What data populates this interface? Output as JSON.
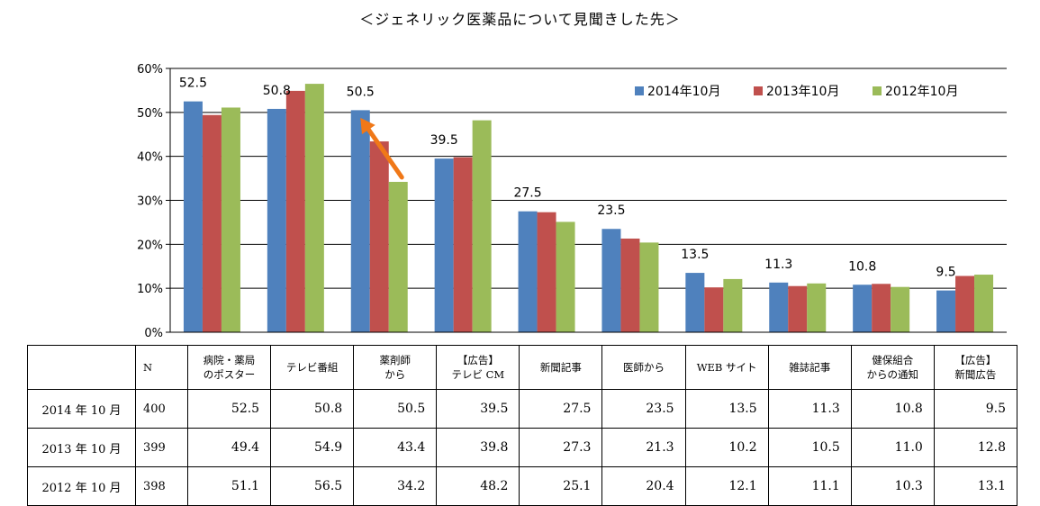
{
  "title": "＜ジェネリック医薬品について見聞きした先＞",
  "chart_data": {
    "type": "bar",
    "categories": [
      "病院・薬局のポスター",
      "テレビ番組",
      "薬剤師から",
      "【広告】テレビ CM",
      "新聞記事",
      "医師から",
      "WEB サイト",
      "雑誌記事",
      "健保組合からの通知",
      "【広告】新聞広告"
    ],
    "series": [
      {
        "name": "2014年10月",
        "color": "#4f81bd",
        "values": [
          52.5,
          50.8,
          50.5,
          39.5,
          27.5,
          23.5,
          13.5,
          11.3,
          10.8,
          9.5
        ]
      },
      {
        "name": "2013年10月",
        "color": "#c0504d",
        "values": [
          49.4,
          54.9,
          43.4,
          39.8,
          27.3,
          21.3,
          10.2,
          10.5,
          11.0,
          12.8
        ]
      },
      {
        "name": "2012年10月",
        "color": "#9bbb59",
        "values": [
          51.1,
          56.5,
          34.2,
          48.2,
          25.1,
          20.4,
          12.1,
          11.1,
          10.3,
          13.1
        ]
      }
    ],
    "data_labels": [
      "52.5",
      "50.8",
      "50.5",
      "39.5",
      "27.5",
      "23.5",
      "13.5",
      "11.3",
      "10.8",
      "9.5"
    ],
    "yticks": [
      "0%",
      "10%",
      "20%",
      "30%",
      "40%",
      "50%",
      "60%"
    ],
    "ylim": [
      0,
      60
    ],
    "grid": true,
    "legend": "top-right",
    "annotation": {
      "type": "arrow",
      "color": "#f07818",
      "from_category": 2,
      "from_value": 34,
      "to_category": 2,
      "to_value": 50
    }
  },
  "table": {
    "header": [
      "",
      "N",
      "病院・薬局\nのポスター",
      "テレビ番組",
      "薬剤師\nから",
      "【広告】\nテレビ CM",
      "新聞記事",
      "医師から",
      "WEB サイト",
      "雑誌記事",
      "健保組合\nからの通知",
      "【広告】\n新聞広告"
    ],
    "rows": [
      {
        "label": "2014 年 10 月",
        "n": "400",
        "values": [
          "52.5",
          "50.8",
          "50.5",
          "39.5",
          "27.5",
          "23.5",
          "13.5",
          "11.3",
          "10.8",
          "9.5"
        ]
      },
      {
        "label": "2013 年 10 月",
        "n": "399",
        "values": [
          "49.4",
          "54.9",
          "43.4",
          "39.8",
          "27.3",
          "21.3",
          "10.2",
          "10.5",
          "11.0",
          "12.8"
        ]
      },
      {
        "label": "2012 年 10 月",
        "n": "398",
        "values": [
          "51.1",
          "56.5",
          "34.2",
          "48.2",
          "25.1",
          "20.4",
          "12.1",
          "11.1",
          "10.3",
          "13.1"
        ]
      }
    ]
  }
}
